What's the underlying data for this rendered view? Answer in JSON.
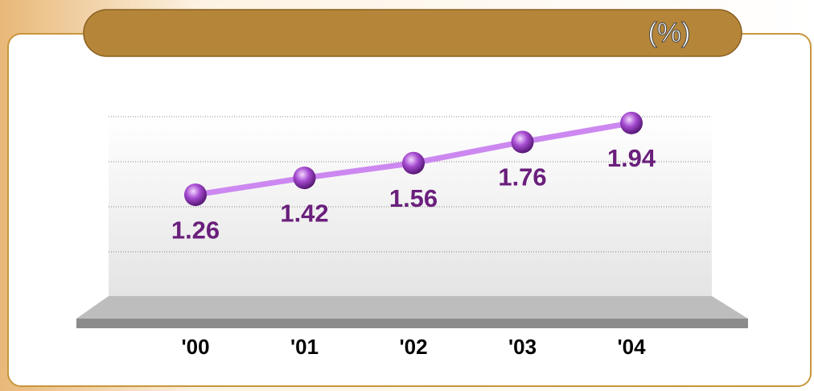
{
  "chart_data": {
    "type": "line",
    "title": "(%)",
    "categories": [
      "'00",
      "'01",
      "'02",
      "'03",
      "'04"
    ],
    "values": [
      1.26,
      1.42,
      1.56,
      1.76,
      1.94
    ],
    "color": "#cc88f0",
    "marker_color": "#9b3fc4",
    "label_color": "#6a1f7c",
    "ylim": [
      0.3,
      2.0
    ]
  }
}
